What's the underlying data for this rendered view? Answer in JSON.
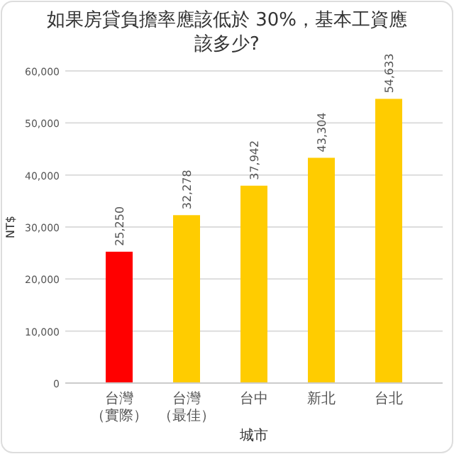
{
  "chart_data": {
    "type": "bar",
    "title": "如果房貸負擔率應該低於 30%，基本工資應該多少?",
    "xlabel": "城市",
    "ylabel": "NT$",
    "categories": [
      "台灣（實際）",
      "台灣（最佳）",
      "台中",
      "新北",
      "台北"
    ],
    "values": [
      25250,
      32278,
      37942,
      43304,
      54633
    ],
    "colors": [
      "#ff0000",
      "#ffcc00",
      "#ffcc00",
      "#ffcc00",
      "#ffcc00"
    ],
    "value_labels": [
      "25,250",
      "32,278",
      "37,942",
      "43,304",
      "54,633"
    ],
    "ylim": [
      0,
      60000
    ],
    "yticks": [
      {
        "value": 0,
        "label": "0"
      },
      {
        "value": 10000,
        "label": "10,000"
      },
      {
        "value": 20000,
        "label": "20,000"
      },
      {
        "value": 30000,
        "label": "30,000"
      },
      {
        "value": 40000,
        "label": "40,000"
      },
      {
        "value": 50000,
        "label": "50,000"
      },
      {
        "value": 60000,
        "label": "60,000"
      }
    ],
    "grid": "y"
  }
}
